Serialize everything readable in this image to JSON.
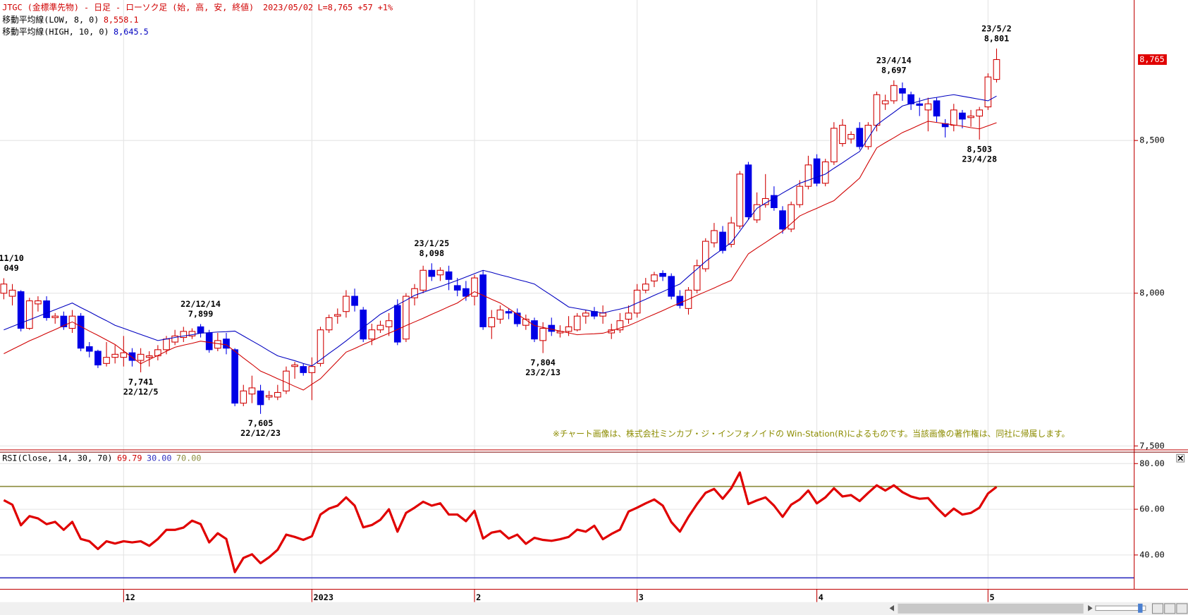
{
  "chart_data": [
    {
      "type": "candlestick",
      "title": "JTGC (金標準先物) - 日足 - ローソク足 (始, 高, 安, 終値)",
      "date": "2023/05/02",
      "quote": "L=8,765 +57 +1%",
      "categories": [
        null,
        null,
        null,
        null,
        null,
        null,
        null,
        null,
        null,
        null,
        null,
        null,
        null,
        null,
        "12",
        null,
        null,
        null,
        null,
        null,
        null,
        null,
        null,
        null,
        null,
        null,
        null,
        null,
        null,
        null,
        null,
        null,
        null,
        null,
        null,
        null,
        "2023",
        null,
        null,
        null,
        null,
        null,
        null,
        null,
        null,
        null,
        null,
        null,
        null,
        null,
        null,
        null,
        null,
        null,
        null,
        "2",
        null,
        null,
        null,
        null,
        null,
        null,
        null,
        null,
        null,
        null,
        null,
        null,
        null,
        null,
        null,
        null,
        null,
        null,
        "3",
        null,
        null,
        null,
        null,
        null,
        null,
        null,
        null,
        null,
        null,
        null,
        null,
        null,
        null,
        null,
        null,
        null,
        null,
        null,
        null,
        "4",
        null,
        null,
        null,
        null,
        null,
        null,
        null,
        null,
        null,
        null,
        null,
        null,
        null,
        null,
        null,
        null,
        null,
        null,
        null,
        "5",
        null
      ],
      "ohlc": [
        [
          8000,
          8049,
          7980,
          8030
        ],
        [
          7990,
          8030,
          7960,
          8010
        ],
        [
          8005,
          8010,
          7875,
          7885
        ],
        [
          7885,
          7985,
          7880,
          7975
        ],
        [
          7965,
          7990,
          7940,
          7975
        ],
        [
          7975,
          7990,
          7910,
          7920
        ],
        [
          7920,
          7935,
          7900,
          7925
        ],
        [
          7925,
          7940,
          7880,
          7890
        ],
        [
          7885,
          7945,
          7870,
          7925
        ],
        [
          7925,
          7935,
          7810,
          7820
        ],
        [
          7825,
          7840,
          7790,
          7810
        ],
        [
          7810,
          7815,
          7755,
          7765
        ],
        [
          7770,
          7840,
          7760,
          7790
        ],
        [
          7790,
          7830,
          7770,
          7800
        ],
        [
          7790,
          7860,
          7760,
          7805
        ],
        [
          7805,
          7820,
          7760,
          7780
        ],
        [
          7780,
          7820,
          7741,
          7800
        ],
        [
          7790,
          7810,
          7760,
          7795
        ],
        [
          7795,
          7830,
          7780,
          7815
        ],
        [
          7815,
          7860,
          7800,
          7850
        ],
        [
          7840,
          7880,
          7830,
          7860
        ],
        [
          7855,
          7890,
          7840,
          7875
        ],
        [
          7860,
          7885,
          7850,
          7875
        ],
        [
          7890,
          7899,
          7855,
          7870
        ],
        [
          7870,
          7880,
          7805,
          7815
        ],
        [
          7820,
          7870,
          7810,
          7845
        ],
        [
          7850,
          7870,
          7800,
          7820
        ],
        [
          7815,
          7820,
          7630,
          7640
        ],
        [
          7640,
          7700,
          7630,
          7680
        ],
        [
          7670,
          7730,
          7640,
          7690
        ],
        [
          7680,
          7700,
          7605,
          7635
        ],
        [
          7660,
          7680,
          7650,
          7665
        ],
        [
          7660,
          7700,
          7650,
          7675
        ],
        [
          7680,
          7760,
          7670,
          7745
        ],
        [
          7760,
          7775,
          7720,
          7765
        ],
        [
          7760,
          7770,
          7730,
          7740
        ],
        [
          7740,
          7790,
          7650,
          7760
        ],
        [
          7770,
          7890,
          7760,
          7880
        ],
        [
          7880,
          7930,
          7870,
          7920
        ],
        [
          7925,
          7950,
          7900,
          7930
        ],
        [
          7940,
          8010,
          7920,
          7990
        ],
        [
          7990,
          8015,
          7940,
          7960
        ],
        [
          7945,
          7955,
          7840,
          7850
        ],
        [
          7850,
          7900,
          7830,
          7880
        ],
        [
          7880,
          7910,
          7870,
          7895
        ],
        [
          7890,
          7935,
          7860,
          7910
        ],
        [
          7960,
          7980,
          7830,
          7840
        ],
        [
          7850,
          8000,
          7840,
          7990
        ],
        [
          7985,
          8030,
          7960,
          8015
        ],
        [
          8010,
          8090,
          8000,
          8075
        ],
        [
          8075,
          8098,
          8040,
          8055
        ],
        [
          8060,
          8085,
          8040,
          8075
        ],
        [
          8070,
          8090,
          8010,
          8045
        ],
        [
          8025,
          8050,
          7990,
          8010
        ],
        [
          8015,
          8040,
          7975,
          7990
        ],
        [
          7990,
          8060,
          7960,
          8050
        ],
        [
          8060,
          8075,
          7880,
          7890
        ],
        [
          7890,
          7945,
          7850,
          7920
        ],
        [
          7915,
          7960,
          7900,
          7945
        ],
        [
          7940,
          7950,
          7915,
          7935
        ],
        [
          7935,
          7950,
          7890,
          7900
        ],
        [
          7895,
          7930,
          7880,
          7915
        ],
        [
          7910,
          7920,
          7840,
          7850
        ],
        [
          7845,
          7905,
          7804,
          7885
        ],
        [
          7895,
          7920,
          7860,
          7875
        ],
        [
          7870,
          7895,
          7855,
          7875
        ],
        [
          7875,
          7925,
          7860,
          7890
        ],
        [
          7880,
          7935,
          7875,
          7925
        ],
        [
          7925,
          7945,
          7900,
          7935
        ],
        [
          7940,
          7955,
          7915,
          7925
        ],
        [
          7925,
          7960,
          7900,
          7935
        ],
        [
          7870,
          7900,
          7850,
          7880
        ],
        [
          7880,
          7935,
          7870,
          7910
        ],
        [
          7915,
          7960,
          7900,
          7935
        ],
        [
          7935,
          8030,
          7920,
          8010
        ],
        [
          8010,
          8050,
          8000,
          8030
        ],
        [
          8040,
          8070,
          8020,
          8060
        ],
        [
          8065,
          8075,
          8040,
          8055
        ],
        [
          8055,
          8065,
          7980,
          7990
        ],
        [
          7990,
          8010,
          7950,
          7960
        ],
        [
          7950,
          8020,
          7930,
          8010
        ],
        [
          8010,
          8110,
          8000,
          8090
        ],
        [
          8080,
          8180,
          8070,
          8170
        ],
        [
          8165,
          8230,
          8150,
          8205
        ],
        [
          8200,
          8220,
          8130,
          8140
        ],
        [
          8160,
          8250,
          8150,
          8230
        ],
        [
          8220,
          8400,
          8210,
          8390
        ],
        [
          8420,
          8430,
          8240,
          8250
        ],
        [
          8240,
          8330,
          8230,
          8290
        ],
        [
          8290,
          8390,
          8280,
          8310
        ],
        [
          8320,
          8350,
          8270,
          8280
        ],
        [
          8270,
          8285,
          8195,
          8210
        ],
        [
          8210,
          8300,
          8200,
          8290
        ],
        [
          8290,
          8370,
          8280,
          8350
        ],
        [
          8350,
          8450,
          8340,
          8420
        ],
        [
          8440,
          8455,
          8350,
          8360
        ],
        [
          8360,
          8440,
          8350,
          8430
        ],
        [
          8430,
          8560,
          8420,
          8540
        ],
        [
          8490,
          8570,
          8480,
          8550
        ],
        [
          8505,
          8530,
          8490,
          8520
        ],
        [
          8540,
          8560,
          8470,
          8480
        ],
        [
          8480,
          8560,
          8470,
          8550
        ],
        [
          8550,
          8660,
          8530,
          8650
        ],
        [
          8620,
          8650,
          8600,
          8630
        ],
        [
          8630,
          8697,
          8620,
          8680
        ],
        [
          8670,
          8690,
          8630,
          8655
        ],
        [
          8650,
          8660,
          8600,
          8620
        ],
        [
          8620,
          8640,
          8580,
          8615
        ],
        [
          8600,
          8640,
          8530,
          8620
        ],
        [
          8630,
          8640,
          8560,
          8580
        ],
        [
          8555,
          8570,
          8510,
          8545
        ],
        [
          8550,
          8620,
          8530,
          8600
        ],
        [
          8590,
          8600,
          8540,
          8570
        ],
        [
          8575,
          8600,
          8545,
          8580
        ],
        [
          8580,
          8610,
          8503,
          8600
        ],
        [
          8610,
          8720,
          8600,
          8708
        ],
        [
          8700,
          8801,
          8690,
          8765
        ]
      ],
      "up_color": "#d00000",
      "down_color": "#0000e6",
      "ylim": [
        7487,
        8960
      ],
      "yticks": [
        {
          "value": 7500,
          "label": "7,500"
        },
        {
          "value": 8000,
          "label": "8,000"
        },
        {
          "value": 8500,
          "label": "8,500"
        }
      ],
      "last_label": "8,765",
      "series": [
        {
          "name": "移動平均線(LOW, 8, 0)",
          "color": "#d00000",
          "last_label": "8,558.1",
          "values": [
            7802,
            7816,
            7830,
            7844,
            7856,
            7869,
            7881,
            7894,
            7906,
            7891,
            7876,
            7862,
            7847,
            7832,
            7811,
            7790,
            7769,
            7783,
            7796,
            7810,
            7823,
            7830,
            7836,
            7843,
            7839,
            7835,
            7831,
            7810,
            7788,
            7767,
            7745,
            7733,
            7720,
            7708,
            7695,
            7683,
            7702,
            7720,
            7749,
            7778,
            7807,
            7819,
            7832,
            7844,
            7857,
            7869,
            7881,
            7894,
            7906,
            7918,
            7931,
            7943,
            7956,
            7968,
            7987,
            8005,
            7993,
            7980,
            7968,
            7950,
            7931,
            7913,
            7894,
            7888,
            7882,
            7876,
            7870,
            7864,
            7866,
            7867,
            7869,
            7877,
            7886,
            7894,
            7906,
            7919,
            7931,
            7943,
            7956,
            7968,
            7980,
            7993,
            8005,
            8017,
            8030,
            8042,
            8086,
            8129,
            8148,
            8166,
            8185,
            8203,
            8228,
            8253,
            8266,
            8278,
            8291,
            8303,
            8328,
            8352,
            8377,
            8427,
            8476,
            8493,
            8509,
            8526,
            8538,
            8551,
            8563,
            8559,
            8555,
            8551,
            8547,
            8542,
            8538,
            8548,
            8558.1
          ]
        },
        {
          "name": "移動平均線(HIGH, 10, 0)",
          "color": "#0000c0",
          "last_label": "8,645.5",
          "values": [
            7880,
            7891,
            7902,
            7913,
            7924,
            7935,
            7946,
            7957,
            7968,
            7953,
            7939,
            7924,
            7910,
            7895,
            7885,
            7875,
            7865,
            7855,
            7845,
            7850,
            7855,
            7860,
            7864,
            7869,
            7871,
            7873,
            7874,
            7876,
            7860,
            7844,
            7828,
            7811,
            7795,
            7787,
            7779,
            7770,
            7762,
            7782,
            7803,
            7823,
            7844,
            7866,
            7888,
            7909,
            7931,
            7946,
            7962,
            7977,
            7993,
            8003,
            8013,
            8022,
            8032,
            8042,
            8053,
            8064,
            8075,
            8068,
            8060,
            8053,
            8045,
            8038,
            8030,
            8011,
            7993,
            7974,
            7955,
            7950,
            7945,
            7940,
            7935,
            7942,
            7948,
            7955,
            7968,
            7980,
            7993,
            8005,
            8018,
            8030,
            8055,
            8079,
            8104,
            8125,
            8145,
            8166,
            8203,
            8241,
            8278,
            8295,
            8311,
            8328,
            8344,
            8360,
            8370,
            8380,
            8390,
            8409,
            8427,
            8446,
            8464,
            8508,
            8551,
            8572,
            8592,
            8613,
            8621,
            8629,
            8637,
            8641,
            8646,
            8650,
            8645,
            8640,
            8635,
            8630,
            8645.5
          ]
        }
      ],
      "annotations": [
        {
          "lines": [
            "11/10",
            "049"
          ]
        },
        {
          "lines": [
            "22/12/14",
            "7,899"
          ]
        },
        {
          "lines": [
            "7,741",
            "22/12/5"
          ]
        },
        {
          "lines": [
            "7,605",
            "22/12/23"
          ]
        },
        {
          "lines": [
            "23/1/25",
            "8,098"
          ]
        },
        {
          "lines": [
            "7,804",
            "23/2/13"
          ]
        },
        {
          "lines": [
            "23/4/14",
            "8,697"
          ]
        },
        {
          "lines": [
            "23/5/2",
            "8,801"
          ]
        },
        {
          "lines": [
            "8,503",
            "23/4/28"
          ]
        }
      ],
      "note": "※チャート画像は、株式会社ミンカブ・ジ・インフォノイドの Win-Station(R)によるものです。当該画像の著作権は、同社に帰属します。"
    },
    {
      "type": "line",
      "title": "RSI(Close, 14, 30, 70)",
      "color": "#e00000",
      "values": [
        64,
        62,
        53,
        57,
        56,
        53.5,
        54.5,
        51,
        54.5,
        47,
        46,
        42.6,
        46,
        45,
        46,
        45.5,
        46,
        44,
        47,
        51,
        51,
        52,
        55,
        53.5,
        45.5,
        49.5,
        47,
        32.5,
        38.7,
        40.3,
        36.4,
        39,
        42.3,
        48.9,
        47.9,
        46.6,
        48.2,
        57.7,
        60.3,
        61.6,
        65.2,
        61.6,
        52.1,
        53.1,
        55.4,
        60,
        50.2,
        58.4,
        60.7,
        63.3,
        61.6,
        62.6,
        57.7,
        57.7,
        54.8,
        59.3,
        47.2,
        49.8,
        50.5,
        47.2,
        48.9,
        44.9,
        47.5,
        46.6,
        46.2,
        46.9,
        47.9,
        51.1,
        50.2,
        52.8,
        46.9,
        49.2,
        51.1,
        59,
        60.7,
        62.6,
        64.3,
        61.6,
        54.4,
        50.2,
        56.7,
        62.3,
        67.2,
        68.9,
        64.6,
        69.2,
        76.1,
        62.3,
        63.9,
        65.2,
        61.6,
        56.7,
        62,
        64.3,
        68.2,
        62.6,
        65.2,
        69.2,
        65.6,
        66.2,
        63.6,
        67.2,
        70.5,
        68.2,
        70.5,
        67.5,
        65.6,
        64.6,
        64.9,
        60.7,
        57,
        60.3,
        57.7,
        58.4,
        60.7,
        66.9,
        69.79
      ],
      "levels": [
        {
          "value": 30,
          "label": "30.00",
          "color": "#3030c0"
        },
        {
          "value": 70,
          "label": "70.00",
          "color": "#8c8c3c"
        }
      ],
      "ylim": [
        25,
        85
      ],
      "yticks": [
        {
          "value": 40,
          "label": "40.00"
        },
        {
          "value": 60,
          "label": "60.00"
        },
        {
          "value": 80,
          "label": "80.00"
        }
      ]
    }
  ]
}
